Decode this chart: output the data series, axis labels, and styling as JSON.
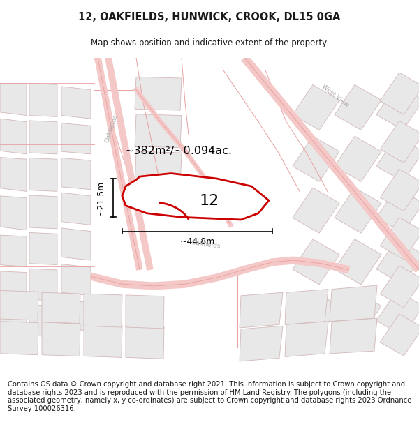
{
  "title": "12, OAKFIELDS, HUNWICK, CROOK, DL15 0GA",
  "subtitle": "Map shows position and indicative extent of the property.",
  "footnote": "Contains OS data © Crown copyright and database right 2021. This information is subject to Crown copyright and database rights 2023 and is reproduced with the permission of HM Land Registry. The polygons (including the associated geometry, namely x, y co-ordinates) are subject to Crown copyright and database rights 2023 Ordnance Survey 100026316.",
  "title_fontsize": 10.5,
  "subtitle_fontsize": 8.5,
  "footnote_fontsize": 7.2,
  "road_fill": "#f5c8c8",
  "road_edge": "#e8a0a0",
  "block_fill": "#e8e8e8",
  "block_edge": "#d4b8b8",
  "highlight_edge": "#cc0000",
  "highlight_fill": "#ffffff",
  "label_number": "12",
  "area_label": "~382m²/~0.094ac.",
  "width_label": "~44.8m",
  "height_label": "~21.5m"
}
